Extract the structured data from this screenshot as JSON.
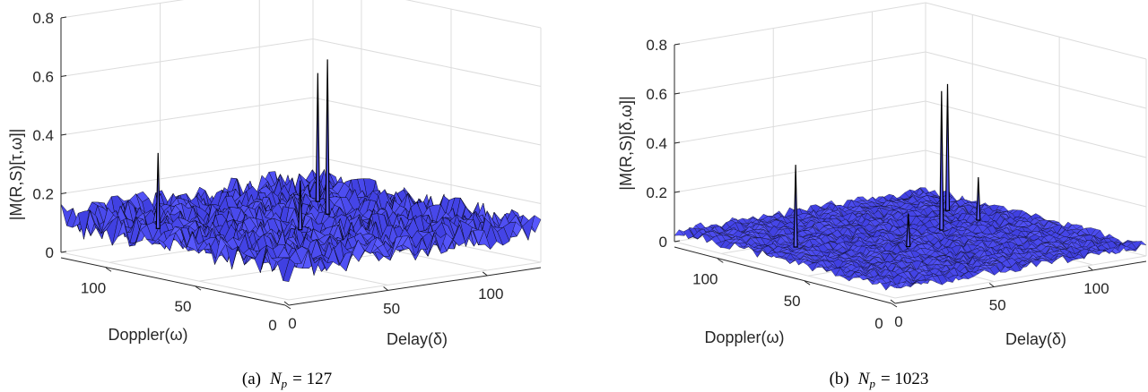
{
  "chart_data": [
    {
      "type": "surface",
      "panel": "a",
      "caption_prefix": "(a)",
      "caption_math": "N",
      "caption_sub": "p",
      "caption_value": "= 127",
      "xlabel": "Delay(δ)",
      "ylabel": "Doppler(ω)",
      "zlabel": "|M(R,S)[τ,ω]|",
      "x_ticks": [
        "0",
        "50",
        "100"
      ],
      "y_ticks": [
        "0",
        "50",
        "100"
      ],
      "z_ticks": [
        "0",
        "0.2",
        "0.4",
        "0.6",
        "0.8"
      ],
      "xlim": [
        0,
        127
      ],
      "ylim": [
        0,
        127
      ],
      "zlim": [
        0,
        0.8
      ],
      "noise_floor_range": [
        0.0,
        0.17
      ],
      "surface_color": "#5a5aff",
      "mesh_color": "#000000",
      "peaks": [
        {
          "delay": 20,
          "doppler": 95,
          "value": 0.36
        },
        {
          "delay": 60,
          "doppler": 60,
          "value": 0.27
        },
        {
          "delay": 90,
          "doppler": 78,
          "value": 0.63
        },
        {
          "delay": 105,
          "doppler": 100,
          "value": 0.54
        }
      ]
    },
    {
      "type": "surface",
      "panel": "b",
      "caption_prefix": "(b)",
      "caption_math": "N",
      "caption_sub": "p",
      "caption_value": "= 1023",
      "xlabel": "Delay(δ)",
      "ylabel": "Doppler(ω)",
      "zlabel": "|M(R,S)[δ,ω]|",
      "x_ticks": [
        "0",
        "50",
        "100"
      ],
      "y_ticks": [
        "0",
        "50",
        "100"
      ],
      "z_ticks": [
        "0",
        "0.2",
        "0.4",
        "0.6",
        "0.8"
      ],
      "xlim": [
        0,
        127
      ],
      "ylim": [
        0,
        127
      ],
      "zlim": [
        0,
        0.8
      ],
      "noise_floor_range": [
        0.0,
        0.06
      ],
      "surface_color": "#5a5aff",
      "mesh_color": "#000000",
      "peaks": [
        {
          "delay": 20,
          "doppler": 80,
          "value": 0.37
        },
        {
          "delay": 55,
          "doppler": 55,
          "value": 0.17
        },
        {
          "delay": 85,
          "doppler": 70,
          "value": 0.6
        },
        {
          "delay": 110,
          "doppler": 95,
          "value": 0.55
        },
        {
          "delay": 108,
          "doppler": 75,
          "value": 0.21
        }
      ]
    }
  ]
}
